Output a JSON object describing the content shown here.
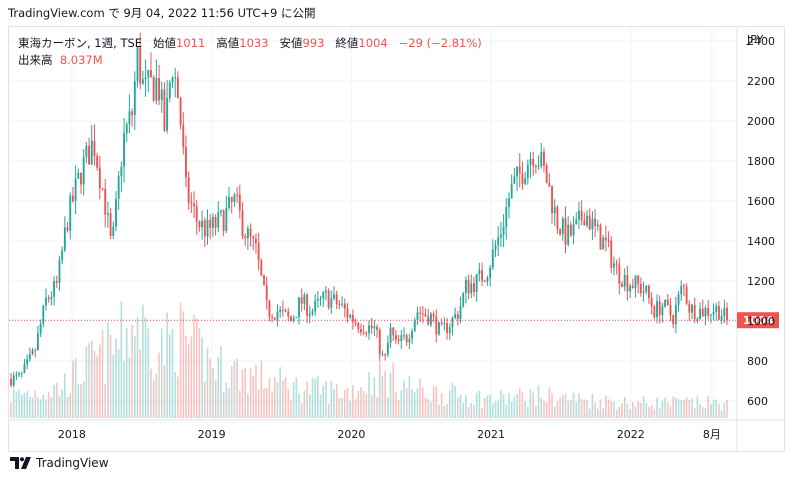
{
  "header": {
    "text": "TradingView.com で 9月 04, 2022 11:56 UTC+9 に公開"
  },
  "legend": {
    "symbol": "東海カーボン, 1週, TSE",
    "open_label": "始値",
    "open": "1011",
    "high_label": "高値",
    "high": "1033",
    "low_label": "安値",
    "low": "993",
    "close_label": "終値",
    "close": "1004",
    "change": "−29 (−2.81%)",
    "volume_label": "出来高",
    "volume": "8.037M"
  },
  "footer": {
    "brand": "TradingView"
  },
  "colors": {
    "up": "#26a69a",
    "down": "#ef5350",
    "grid": "#f0f3fa",
    "text": "#131722",
    "price_line": "#ef5350"
  },
  "chart_data": {
    "type": "candlestick",
    "currency": "JPY",
    "y_ticks": [
      600,
      800,
      1000,
      1200,
      1400,
      1600,
      1800,
      2000,
      2200,
      2400
    ],
    "ylim": [
      505,
      2470
    ],
    "x_labels": [
      {
        "label": "2018",
        "t": 2018.0
      },
      {
        "label": "2019",
        "t": 2019.0
      },
      {
        "label": "2020",
        "t": 2020.0
      },
      {
        "label": "2021",
        "t": 2021.0
      },
      {
        "label": "2022",
        "t": 2022.0
      },
      {
        "label": "8月",
        "t": 2022.58
      }
    ],
    "xlim": [
      2017.55,
      2022.76
    ],
    "last_price": 1004,
    "price_anchors": [
      [
        2017.55,
        710
      ],
      [
        2017.62,
        720
      ],
      [
        2017.72,
        850
      ],
      [
        2017.8,
        1100
      ],
      [
        2017.88,
        1180
      ],
      [
        2017.95,
        1500
      ],
      [
        2018.05,
        1750
      ],
      [
        2018.14,
        1900
      ],
      [
        2018.22,
        1600
      ],
      [
        2018.27,
        1350
      ],
      [
        2018.35,
        1900
      ],
      [
        2018.42,
        2050
      ],
      [
        2018.45,
        2330
      ],
      [
        2018.5,
        2150
      ],
      [
        2018.6,
        2200
      ],
      [
        2018.65,
        1950
      ],
      [
        2018.7,
        2300
      ],
      [
        2018.75,
        2100
      ],
      [
        2018.8,
        1650
      ],
      [
        2018.88,
        1500
      ],
      [
        2018.95,
        1450
      ],
      [
        2019.05,
        1500
      ],
      [
        2019.15,
        1600
      ],
      [
        2019.22,
        1450
      ],
      [
        2019.3,
        1350
      ],
      [
        2019.38,
        1050
      ],
      [
        2019.45,
        1050
      ],
      [
        2019.55,
        1000
      ],
      [
        2019.62,
        1100
      ],
      [
        2019.7,
        1050
      ],
      [
        2019.8,
        1120
      ],
      [
        2019.9,
        1080
      ],
      [
        2019.96,
        1030
      ],
      [
        2020.05,
        980
      ],
      [
        2020.15,
        960
      ],
      [
        2020.2,
        820
      ],
      [
        2020.22,
        800
      ],
      [
        2020.26,
        950
      ],
      [
        2020.3,
        880
      ],
      [
        2020.38,
        920
      ],
      [
        2020.45,
        1050
      ],
      [
        2020.55,
        1020
      ],
      [
        2020.62,
        940
      ],
      [
        2020.7,
        1000
      ],
      [
        2020.75,
        1050
      ],
      [
        2020.8,
        1170
      ],
      [
        2020.88,
        1200
      ],
      [
        2020.95,
        1250
      ],
      [
        2021.0,
        1350
      ],
      [
        2021.05,
        1450
      ],
      [
        2021.12,
        1650
      ],
      [
        2021.2,
        1750
      ],
      [
        2021.28,
        1850
      ],
      [
        2021.33,
        1800
      ],
      [
        2021.38,
        1700
      ],
      [
        2021.45,
        1500
      ],
      [
        2021.52,
        1420
      ],
      [
        2021.58,
        1450
      ],
      [
        2021.65,
        1550
      ],
      [
        2021.7,
        1480
      ],
      [
        2021.75,
        1420
      ],
      [
        2021.8,
        1380
      ],
      [
        2021.88,
        1250
      ],
      [
        2021.95,
        1200
      ],
      [
        2022.02,
        1180
      ],
      [
        2022.08,
        1150
      ],
      [
        2022.15,
        1050
      ],
      [
        2022.2,
        1080
      ],
      [
        2022.28,
        1020
      ],
      [
        2022.35,
        1180
      ],
      [
        2022.4,
        1060
      ],
      [
        2022.5,
        1050
      ],
      [
        2022.6,
        1060
      ],
      [
        2022.67,
        1004
      ]
    ],
    "volume_anchors": [
      [
        2017.55,
        30
      ],
      [
        2017.9,
        40
      ],
      [
        2018.1,
        70
      ],
      [
        2018.3,
        95
      ],
      [
        2018.45,
        130
      ],
      [
        2018.6,
        90
      ],
      [
        2018.75,
        110
      ],
      [
        2019.0,
        70
      ],
      [
        2019.3,
        55
      ],
      [
        2019.6,
        40
      ],
      [
        2019.95,
        35
      ],
      [
        2020.2,
        55
      ],
      [
        2020.5,
        35
      ],
      [
        2021.0,
        25
      ],
      [
        2021.3,
        30
      ],
      [
        2021.6,
        25
      ],
      [
        2022.0,
        20
      ],
      [
        2022.67,
        20
      ]
    ]
  }
}
